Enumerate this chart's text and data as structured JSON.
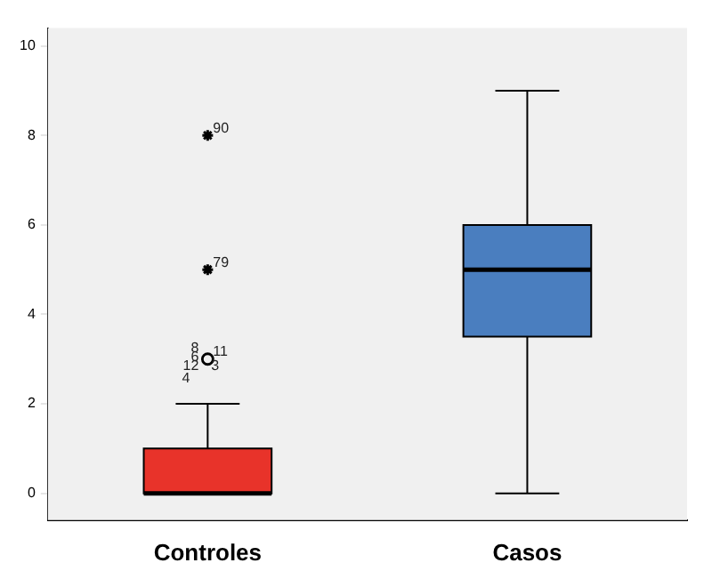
{
  "chart_data": {
    "type": "box",
    "categories": [
      "Controles",
      "Casos"
    ],
    "colors": [
      "#e8332a",
      "#4a7ebf"
    ],
    "boxes": [
      {
        "low": 0,
        "q1": 0,
        "median": 0,
        "q3": 1,
        "high": 2
      },
      {
        "low": 0,
        "q1": 3.5,
        "median": 5,
        "q3": 6,
        "high": 9
      }
    ],
    "series": [
      {
        "type": "scatter",
        "color": "#000000",
        "x": [
          "Controles",
          "Controles",
          "Controles"
        ],
        "values": [
          3,
          5,
          8
        ]
      }
    ],
    "ylim": [
      -0.6,
      10.4
    ],
    "yticks": [
      0,
      2,
      4,
      6,
      8,
      10
    ],
    "grid": false,
    "legend": false,
    "annotations": [
      {
        "text": "90",
        "x": "Controles",
        "y": 8
      },
      {
        "text": "79",
        "x": "Controles",
        "y": 5
      },
      {
        "text": "11",
        "x": "Controles",
        "y": 3
      },
      {
        "text": "8",
        "x": "Controles",
        "y": 3
      },
      {
        "text": "6",
        "x": "Controles",
        "y": 3
      },
      {
        "text": "3",
        "x": "Controles",
        "y": 3
      },
      {
        "text": "12",
        "x": "Controles",
        "y": 3
      },
      {
        "text": "4",
        "x": "Controles",
        "y": 3
      }
    ]
  }
}
